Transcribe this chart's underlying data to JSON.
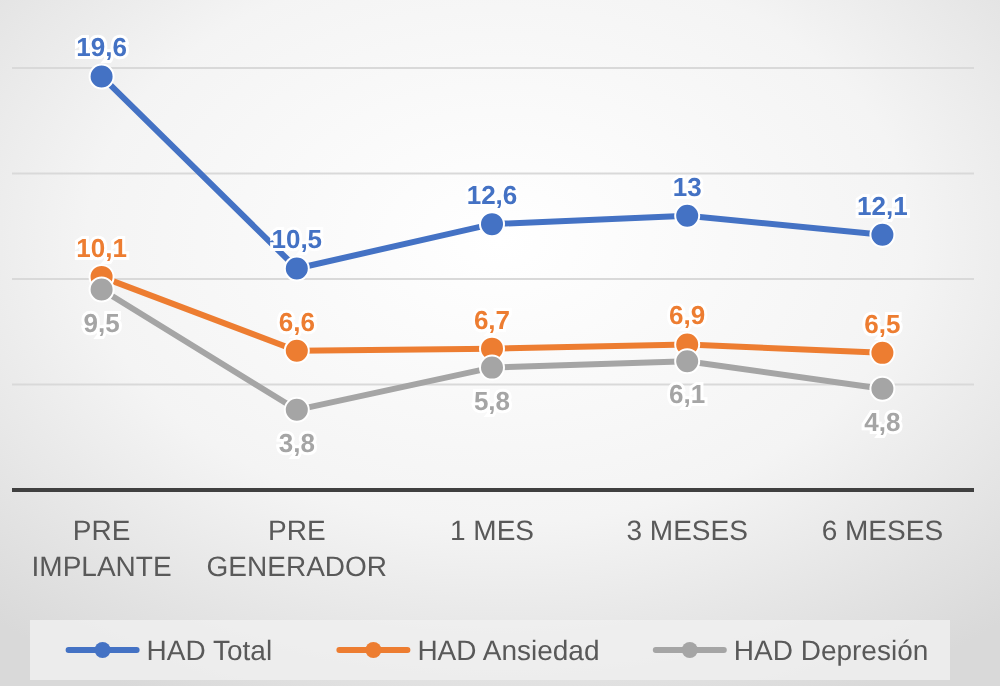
{
  "chart_data": {
    "type": "line",
    "categories": [
      "PRE IMPLANTE",
      "PRE GENERADOR",
      "1 MES",
      "3 MESES",
      "6 MESES"
    ],
    "series": [
      {
        "name": "HAD Total",
        "color": "#4472c4",
        "values": [
          19.6,
          10.5,
          12.6,
          13,
          12.1
        ],
        "value_labels": [
          "19,6",
          "10,5",
          "12,6",
          "13",
          "12,1"
        ]
      },
      {
        "name": "HAD Ansiedad",
        "color": "#ed7d31",
        "values": [
          10.1,
          6.6,
          6.7,
          6.9,
          6.5
        ],
        "value_labels": [
          "10,1",
          "6,6",
          "6,7",
          "6,9",
          "6,5"
        ]
      },
      {
        "name": "HAD Depresión",
        "color": "#a5a5a5",
        "values": [
          9.5,
          3.8,
          5.8,
          6.1,
          4.8
        ],
        "value_labels": [
          "9,5",
          "3,8",
          "5,8",
          "6,1",
          "4,8"
        ]
      }
    ],
    "ylim": [
      0,
      20
    ],
    "yticks": [
      {
        "value": 0,
        "label": null
      },
      {
        "value": 5,
        "label": null
      },
      {
        "value": 10,
        "label": null
      },
      {
        "value": 15,
        "label": null
      },
      {
        "value": 20,
        "label": null
      }
    ],
    "tick_labels": "x",
    "grid": "y",
    "legend": "bottom",
    "marker": "circle",
    "line_style": "solid"
  }
}
